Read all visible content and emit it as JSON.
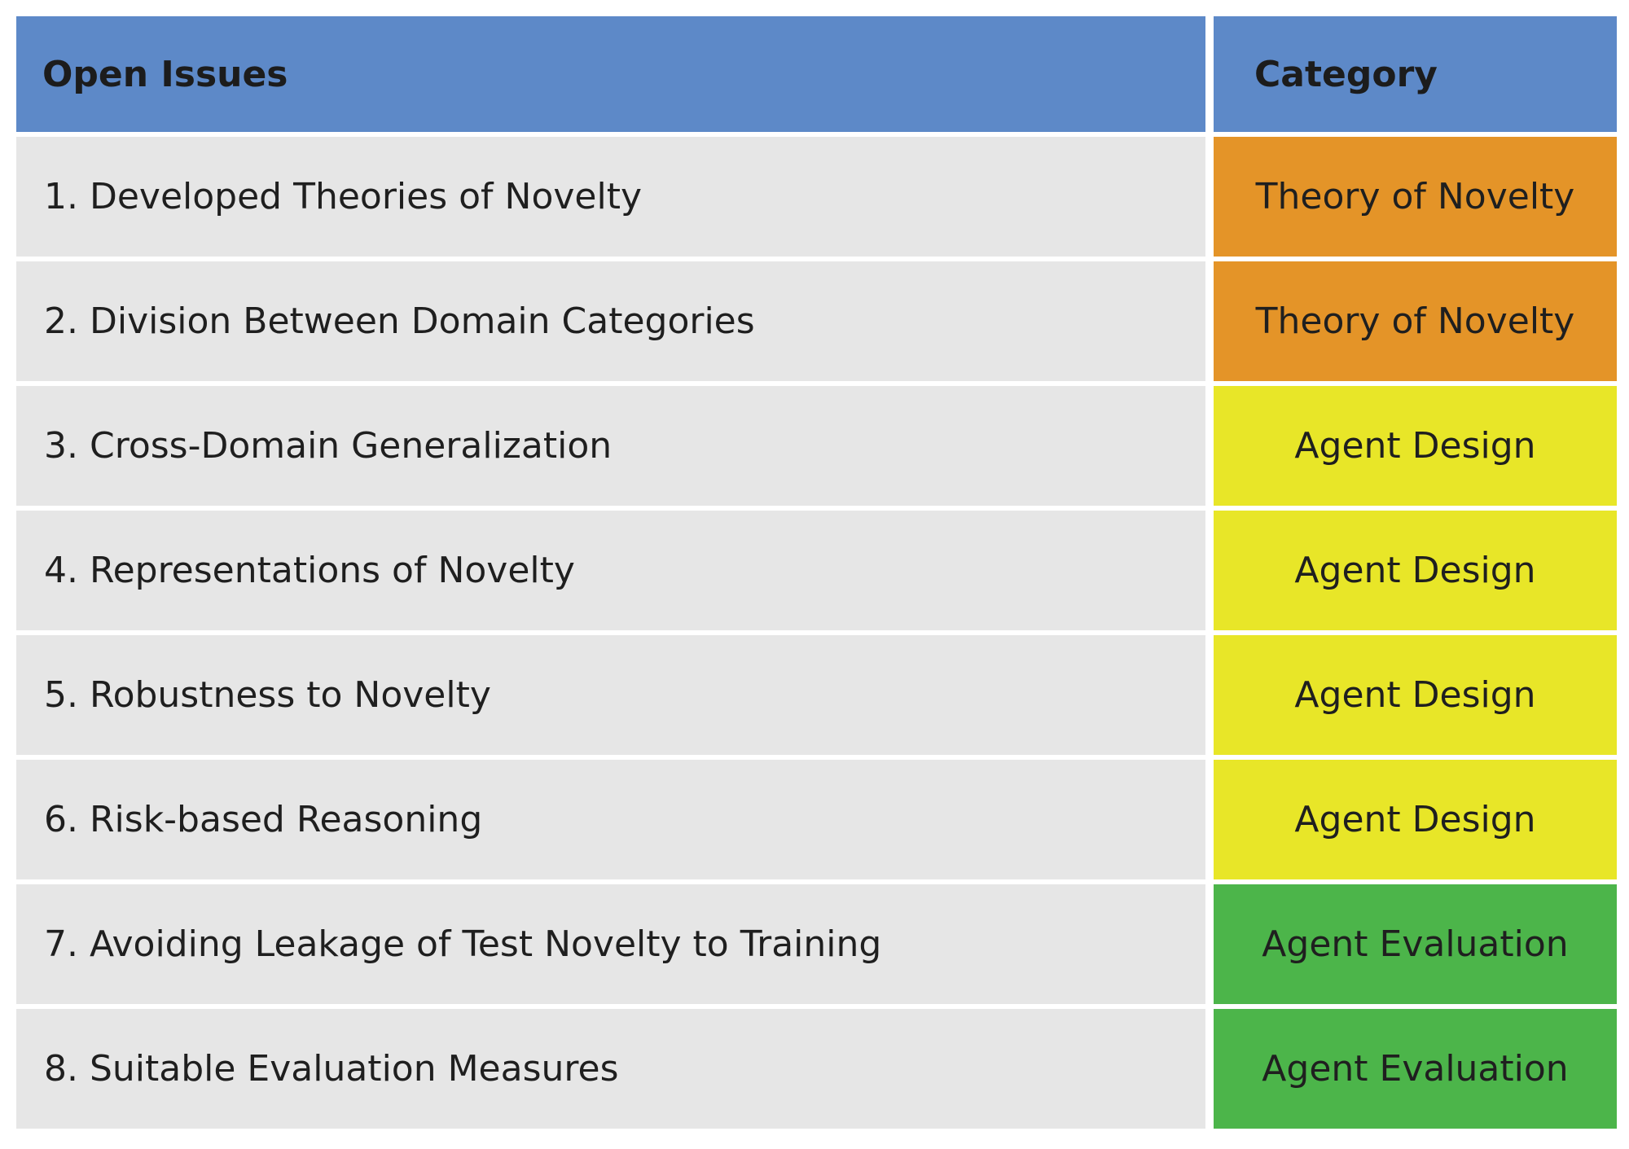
{
  "table": {
    "headers": {
      "issues": "Open Issues",
      "category": "Category"
    },
    "rows": [
      {
        "issue": "1. Developed Theories of Novelty",
        "category": "Theory of Novelty",
        "color": "#e49428"
      },
      {
        "issue": "2. Division Between Domain Categories",
        "category": "Theory of Novelty",
        "color": "#e49428"
      },
      {
        "issue": "3. Cross-Domain Generalization",
        "category": "Agent Design",
        "color": "#e8e628"
      },
      {
        "issue": "4. Representations of Novelty",
        "category": "Agent Design",
        "color": "#e8e628"
      },
      {
        "issue": "5. Robustness to Novelty",
        "category": "Agent Design",
        "color": "#e8e628"
      },
      {
        "issue": "6. Risk-based Reasoning",
        "category": "Agent Design",
        "color": "#e8e628"
      },
      {
        "issue": "7. Avoiding Leakage of Test Novelty to Training",
        "category": "Agent Evaluation",
        "color": "#4cb54a"
      },
      {
        "issue": "8. Suitable Evaluation Measures",
        "category": "Agent Evaluation",
        "color": "#4cb54a"
      }
    ]
  },
  "colors": {
    "header": "#5d89c8",
    "issue_row": "#e6e6e6"
  }
}
